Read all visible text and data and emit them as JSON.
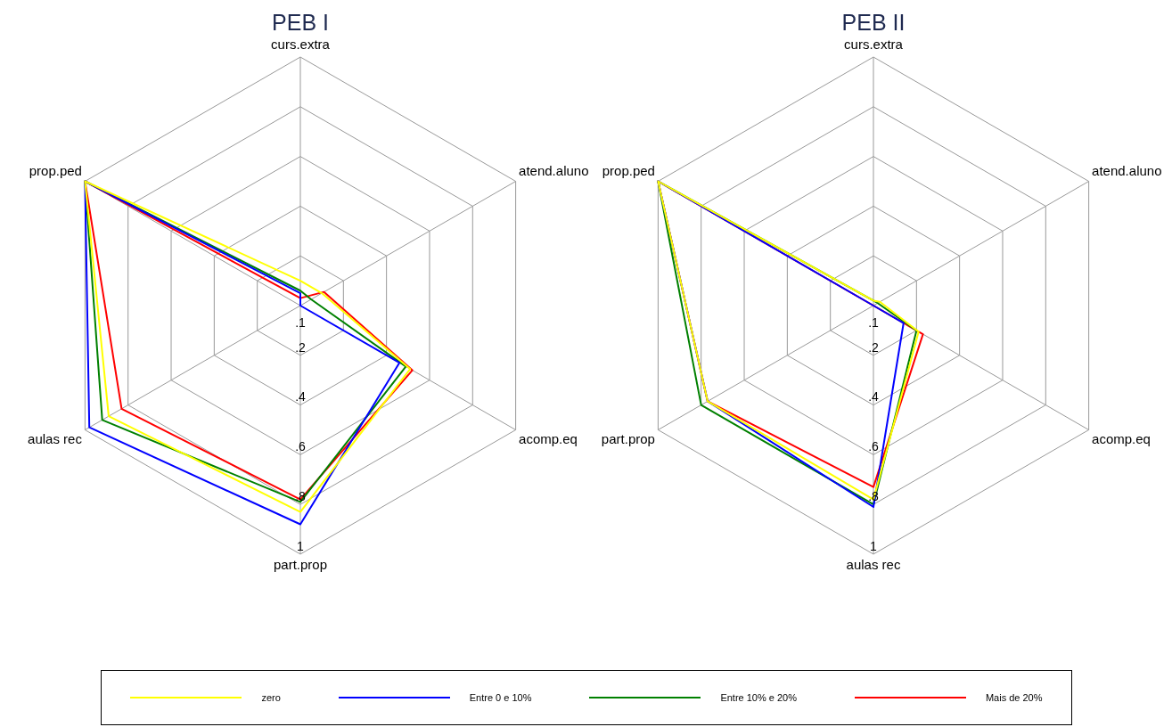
{
  "chart_data": [
    {
      "type": "radar",
      "title": "PEB I",
      "categories": [
        "curs.extra",
        "atend.aluno",
        "acomp.eq",
        "part.prop",
        "aulas rec",
        "prop.ped"
      ],
      "ylim": [
        0,
        1
      ],
      "yticks": [
        {
          "value": 0.1,
          "label": ".1"
        },
        {
          "value": 0.2,
          "label": ".2"
        },
        {
          "value": 0.4,
          "label": ".4"
        },
        {
          "value": 0.6,
          "label": ".6"
        },
        {
          "value": 0.8,
          "label": ".8"
        },
        1
      ],
      "legend": "bottom",
      "grid": true,
      "marker": "none",
      "series": [
        {
          "name": "zero",
          "color": "#ffff00",
          "values": [
            0.1,
            0.1,
            0.51,
            0.83,
            0.89,
            1
          ]
        },
        {
          "name": "Entre 0 e 10%",
          "color": "#0000ff",
          "values": [
            0.05,
            0,
            0.46,
            0.88,
            0.98,
            1
          ]
        },
        {
          "name": "Entre 10% e 20%",
          "color": "#008000",
          "values": [
            0.06,
            0.05,
            0.49,
            0.79,
            0.92,
            1
          ]
        },
        {
          "name": "Mais de 20%",
          "color": "#ff0000",
          "values": [
            0.03,
            0.11,
            0.52,
            0.78,
            0.83,
            1
          ]
        }
      ]
    },
    {
      "type": "radar",
      "title": "PEB II",
      "categories": [
        "curs.extra",
        "atend.aluno",
        "acomp.eq",
        "aulas rec",
        "part.prop",
        "prop.ped"
      ],
      "ylim": [
        0,
        1
      ],
      "yticks": [
        {
          "value": 0.1,
          "label": ".1"
        },
        {
          "value": 0.2,
          "label": ".2"
        },
        {
          "value": 0.4,
          "label": ".4"
        },
        {
          "value": 0.6,
          "label": ".6"
        },
        {
          "value": 0.8,
          "label": ".8"
        },
        1
      ],
      "grid": true,
      "marker": "none",
      "series": [
        {
          "color": "#ffff00",
          "values": [
            0.02,
            0.03,
            0.21,
            0.78,
            0.77,
            1
          ]
        },
        {
          "color": "#0000ff",
          "values": [
            0,
            0,
            0.14,
            0.81,
            0.77,
            1
          ]
        },
        {
          "color": "#008000",
          "values": [
            0.02,
            0.02,
            0.2,
            0.8,
            0.8,
            1
          ]
        },
        {
          "color": "#ff0000",
          "values": [
            0,
            0,
            0.23,
            0.73,
            0.77,
            1
          ]
        }
      ]
    }
  ]
}
